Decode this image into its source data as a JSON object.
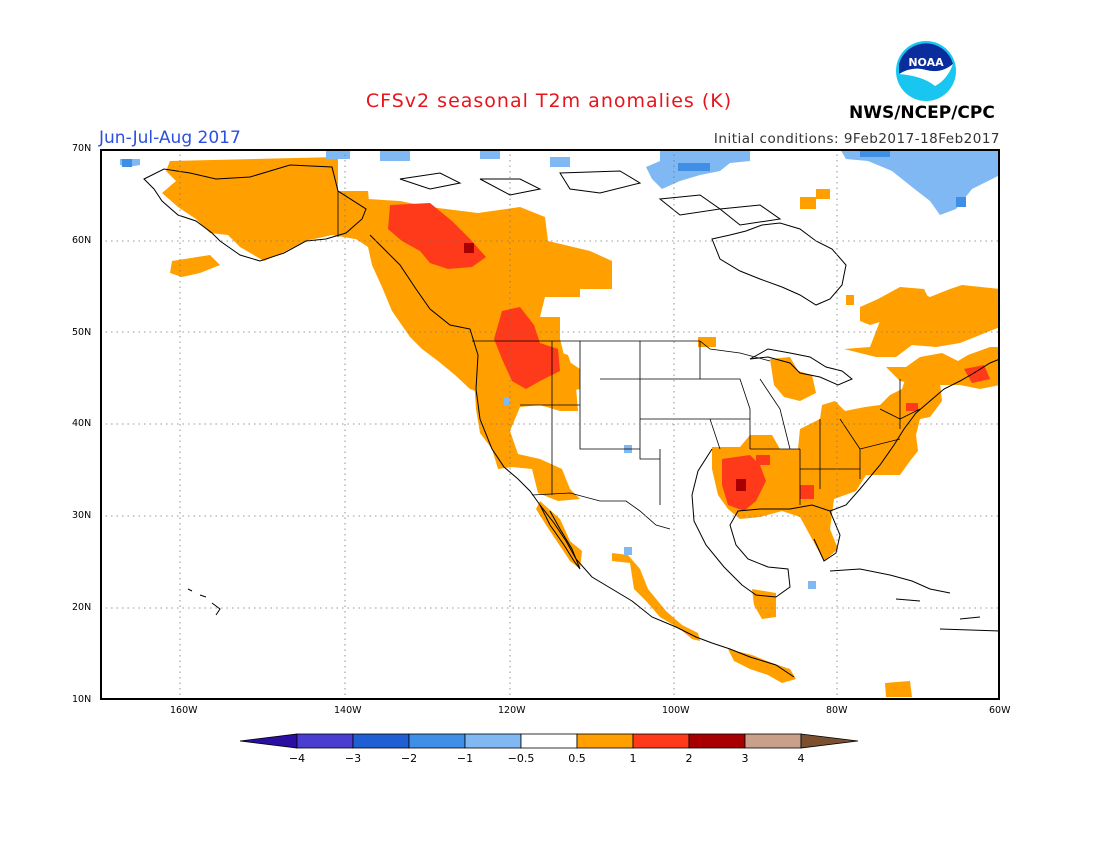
{
  "header": {
    "title": "CFSv2 seasonal T2m anomalies (K)",
    "period": "Jun-Jul-Aug 2017",
    "initial_conditions": "Initial conditions: 9Feb2017-18Feb2017",
    "agency": "NWS/NCEP/CPC",
    "logo_text": "NOAA"
  },
  "map": {
    "projection": "cylindrical",
    "lon_range": [
      -172,
      -60
    ],
    "lat_range": [
      10,
      70
    ],
    "lat_labels": [
      "70N",
      "60N",
      "50N",
      "40N",
      "30N",
      "20N",
      "10N"
    ],
    "lon_labels": [
      "160W",
      "140W",
      "120W",
      "100W",
      "80W",
      "60W"
    ],
    "grid": true
  },
  "colorbar": {
    "ticks": [
      "−4",
      "−3",
      "−2",
      "−1",
      "−0.5",
      "0.5",
      "1",
      "2",
      "3",
      "4"
    ],
    "colors": [
      "#2b0fa3",
      "#4a3ed1",
      "#1f5fd3",
      "#3f8fe6",
      "#7fb8f2",
      "#ffffff",
      "#ff9f00",
      "#ff3a1a",
      "#a80000",
      "#c9a08a",
      "#7a5030"
    ]
  },
  "anomaly_regions": {
    "warm_0_5_to_1": "#ff9f00",
    "warm_1_to_2": "#ff3a1a",
    "warm_2_to_3": "#a80000",
    "cool_minus_0_5_to_minus_1": "#7fb8f2",
    "cool_minus_1_to_minus_2": "#3f8fe6"
  }
}
